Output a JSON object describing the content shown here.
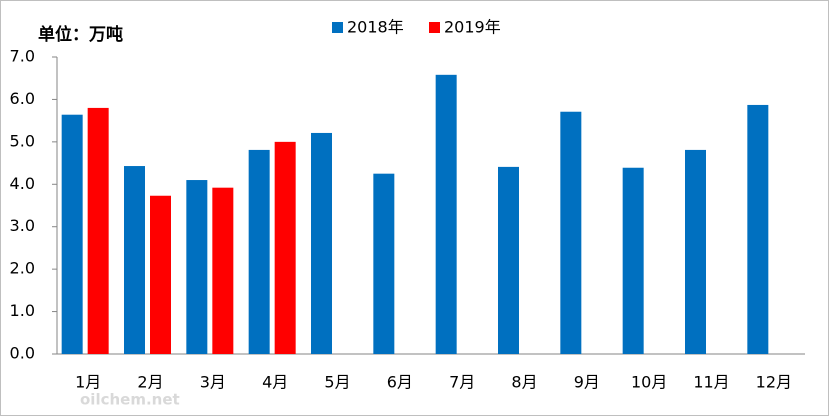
{
  "chart_data": {
    "type": "bar",
    "annotation": "单位：万吨",
    "watermark": "oilchem.net",
    "categories": [
      "1月",
      "2月",
      "3月",
      "4月",
      "5月",
      "6月",
      "7月",
      "8月",
      "9月",
      "10月",
      "11月",
      "12月"
    ],
    "series": [
      {
        "name": "2018年",
        "color": "#0070c0",
        "values": [
          5.64,
          4.43,
          4.1,
          4.81,
          5.21,
          4.25,
          6.58,
          4.41,
          5.71,
          4.39,
          4.81,
          5.87
        ]
      },
      {
        "name": "2019年",
        "color": "#ff0000",
        "values": [
          5.8,
          3.73,
          3.92,
          5.0,
          null,
          null,
          null,
          null,
          null,
          null,
          null,
          null
        ]
      }
    ],
    "ylim": [
      0,
      7
    ],
    "yticks": [
      {
        "value": 0,
        "label": "0.0"
      },
      {
        "value": 1,
        "label": "1.0"
      },
      {
        "value": 2,
        "label": "2.0"
      },
      {
        "value": 3,
        "label": "3.0"
      },
      {
        "value": 4,
        "label": "4.0"
      },
      {
        "value": 5,
        "label": "5.0"
      },
      {
        "value": 6,
        "label": "6.0"
      },
      {
        "value": 7,
        "label": "7.0"
      }
    ],
    "grid": false,
    "legend": "top"
  }
}
